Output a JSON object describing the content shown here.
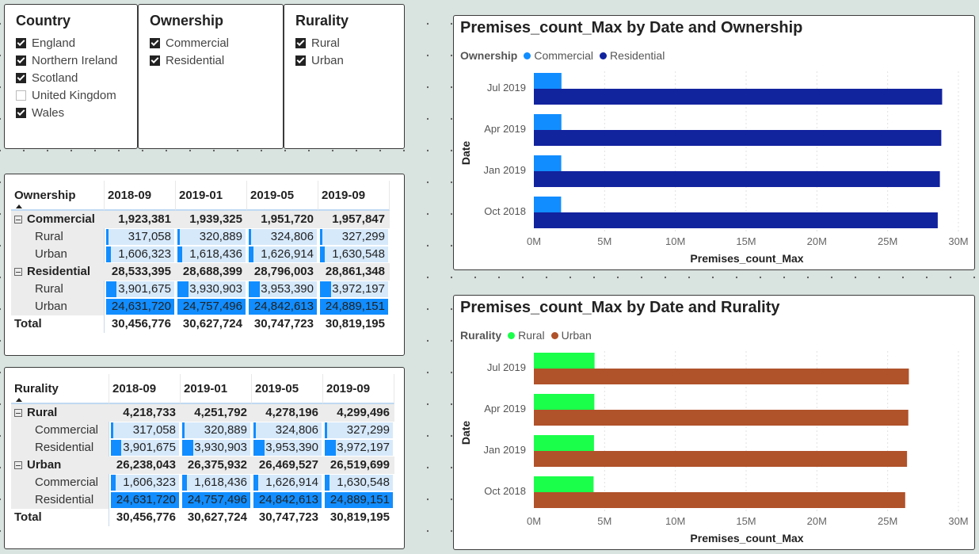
{
  "slicers": [
    {
      "title": "Country",
      "items": [
        {
          "label": "England",
          "checked": true
        },
        {
          "label": "Northern Ireland",
          "checked": true
        },
        {
          "label": "Scotland",
          "checked": true
        },
        {
          "label": "United Kingdom",
          "checked": false
        },
        {
          "label": "Wales",
          "checked": true
        }
      ]
    },
    {
      "title": "Ownership",
      "items": [
        {
          "label": "Commercial",
          "checked": true
        },
        {
          "label": "Residential",
          "checked": true
        }
      ]
    },
    {
      "title": "Rurality",
      "items": [
        {
          "label": "Rural",
          "checked": true
        },
        {
          "label": "Urban",
          "checked": true
        }
      ]
    }
  ],
  "matrix_ownership": {
    "corner": "Ownership",
    "columns": [
      "2018-09",
      "2019-01",
      "2019-05",
      "2019-09"
    ],
    "rows": [
      {
        "label": "Commercial",
        "level": 0,
        "values": [
          "1,923,381",
          "1,939,325",
          "1,951,720",
          "1,957,847"
        ]
      },
      {
        "label": "Rural",
        "level": 1,
        "values": [
          "317,058",
          "320,889",
          "324,806",
          "327,299"
        ],
        "raw": [
          317058,
          320889,
          324806,
          327299
        ]
      },
      {
        "label": "Urban",
        "level": 1,
        "values": [
          "1,606,323",
          "1,618,436",
          "1,626,914",
          "1,630,548"
        ],
        "raw": [
          1606323,
          1618436,
          1626914,
          1630548
        ]
      },
      {
        "label": "Residential",
        "level": 0,
        "values": [
          "28,533,395",
          "28,688,399",
          "28,796,003",
          "28,861,348"
        ]
      },
      {
        "label": "Rural",
        "level": 1,
        "values": [
          "3,901,675",
          "3,930,903",
          "3,953,390",
          "3,972,197"
        ],
        "raw": [
          3901675,
          3930903,
          3953390,
          3972197
        ]
      },
      {
        "label": "Urban",
        "level": 1,
        "values": [
          "24,631,720",
          "24,757,496",
          "24,842,613",
          "24,889,151"
        ],
        "raw": [
          24631720,
          24757496,
          24842613,
          24889151
        ]
      },
      {
        "label": "Total",
        "level": 2,
        "values": [
          "30,456,776",
          "30,627,724",
          "30,747,723",
          "30,819,195"
        ]
      }
    ]
  },
  "matrix_rurality": {
    "corner": "Rurality",
    "columns": [
      "2018-09",
      "2019-01",
      "2019-05",
      "2019-09"
    ],
    "rows": [
      {
        "label": "Rural",
        "level": 0,
        "values": [
          "4,218,733",
          "4,251,792",
          "4,278,196",
          "4,299,496"
        ]
      },
      {
        "label": "Commercial",
        "level": 1,
        "values": [
          "317,058",
          "320,889",
          "324,806",
          "327,299"
        ],
        "raw": [
          317058,
          320889,
          324806,
          327299
        ]
      },
      {
        "label": "Residential",
        "level": 1,
        "values": [
          "3,901,675",
          "3,930,903",
          "3,953,390",
          "3,972,197"
        ],
        "raw": [
          3901675,
          3930903,
          3953390,
          3972197
        ]
      },
      {
        "label": "Urban",
        "level": 0,
        "values": [
          "26,238,043",
          "26,375,932",
          "26,469,527",
          "26,519,699"
        ]
      },
      {
        "label": "Commercial",
        "level": 1,
        "values": [
          "1,606,323",
          "1,618,436",
          "1,626,914",
          "1,630,548"
        ],
        "raw": [
          1606323,
          1618436,
          1626914,
          1630548
        ]
      },
      {
        "label": "Residential",
        "level": 1,
        "values": [
          "24,631,720",
          "24,757,496",
          "24,842,613",
          "24,889,151"
        ],
        "raw": [
          24631720,
          24757496,
          24842613,
          24889151
        ]
      },
      {
        "label": "Total",
        "level": 2,
        "values": [
          "30,456,776",
          "30,627,724",
          "30,747,723",
          "30,819,195"
        ]
      }
    ]
  },
  "chart_data": [
    {
      "type": "bar",
      "orientation": "horizontal",
      "title": "Premises_count_Max by Date and Ownership",
      "legend_title": "Ownership",
      "xlabel": "Premises_count_Max",
      "ylabel": "Date",
      "categories": [
        "Jul 2019",
        "Apr 2019",
        "Jan 2019",
        "Oct 2018"
      ],
      "xlim": [
        0,
        30000000
      ],
      "xticks": [
        "0M",
        "5M",
        "10M",
        "15M",
        "20M",
        "25M",
        "30M"
      ],
      "series": [
        {
          "name": "Commercial",
          "color": "#118dff",
          "values": [
            1950000,
            1945000,
            1935000,
            1925000
          ]
        },
        {
          "name": "Residential",
          "color": "#12239e",
          "values": [
            28850000,
            28790000,
            28690000,
            28540000
          ]
        }
      ]
    },
    {
      "type": "bar",
      "orientation": "horizontal",
      "title": "Premises_count_Max by Date and Rurality",
      "legend_title": "Rurality",
      "xlabel": "Premises_count_Max",
      "ylabel": "Date",
      "categories": [
        "Jul 2019",
        "Apr 2019",
        "Jan 2019",
        "Oct 2018"
      ],
      "xlim": [
        0,
        30000000
      ],
      "xticks": [
        "0M",
        "5M",
        "10M",
        "15M",
        "20M",
        "25M",
        "30M"
      ],
      "series": [
        {
          "name": "Rural",
          "color": "#1aff4a",
          "values": [
            4290000,
            4275000,
            4250000,
            4220000
          ]
        },
        {
          "name": "Urban",
          "color": "#b0522a",
          "values": [
            26500000,
            26460000,
            26370000,
            26240000
          ]
        }
      ]
    }
  ]
}
